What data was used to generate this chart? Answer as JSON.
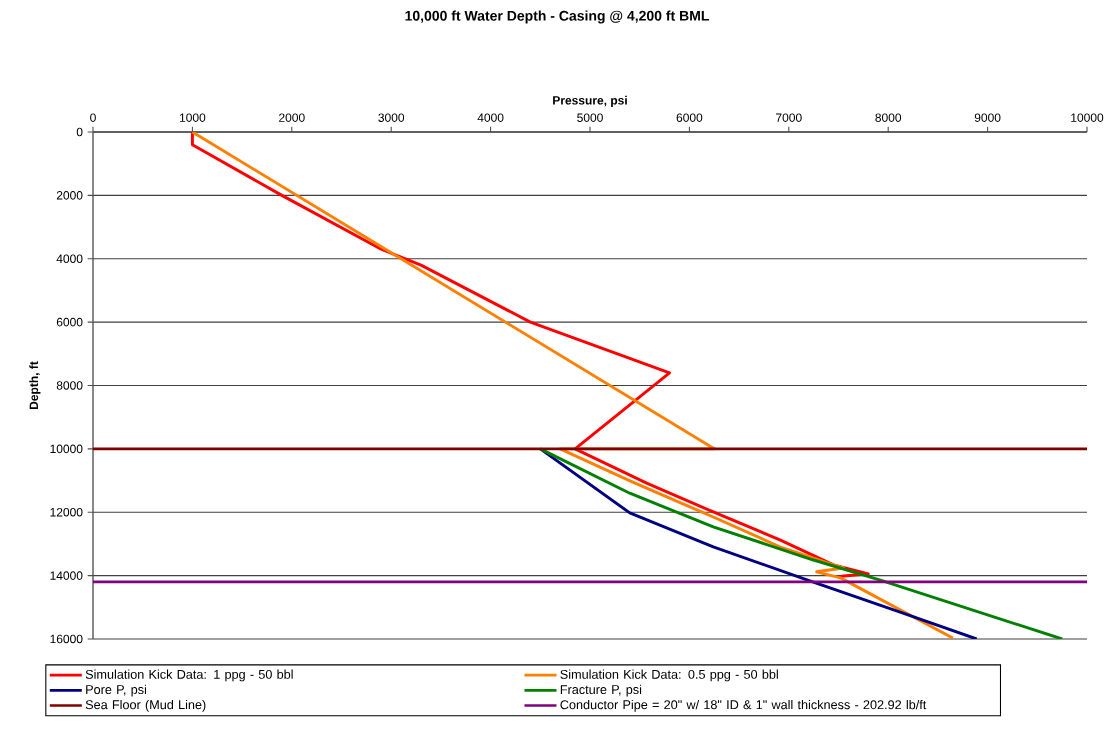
{
  "chart_data": {
    "type": "line",
    "title": "10,000 ft Water Depth - Casing @ 4,200 ft BML",
    "xlabel": "Pressure, psi",
    "ylabel": "Depth, ft",
    "xlim": [
      0,
      10000
    ],
    "xticks": [
      0,
      1000,
      2000,
      3000,
      4000,
      5000,
      6000,
      7000,
      8000,
      9000,
      10000
    ],
    "ylim": [
      16000,
      0
    ],
    "yticks": [
      0,
      2000,
      4000,
      6000,
      8000,
      10000,
      12000,
      14000,
      16000
    ],
    "grid": "y",
    "legend": "bottom",
    "series": [
      {
        "name": "Simulation Kick Data: 1 ppg - 50 bbl",
        "color": "#ff0000",
        "x": [
          1000,
          1000,
          1900,
          2900,
          3300,
          4400,
          5800,
          4850,
          5570,
          6240,
          6910,
          7450,
          7800,
          7550,
          7500
        ],
        "values": [
          0,
          400,
          2000,
          3700,
          4200,
          6000,
          7600,
          10000,
          11080,
          11990,
          12870,
          13660,
          13950,
          14010,
          14050
        ]
      },
      {
        "name": "Simulation Kick Data: 0.5 ppg - 50 bbl",
        "color": "#ff7f00",
        "x": [
          1000,
          6250,
          4700,
          5430,
          6240,
          6910,
          7450,
          7550,
          7280,
          7520,
          8650
        ],
        "values": [
          0,
          10000,
          10000,
          11050,
          12150,
          13090,
          13660,
          13760,
          13880,
          14070,
          15970
        ]
      },
      {
        "name": "Pore P, psi",
        "color": "#000080",
        "x": [
          4500,
          5400,
          6240,
          7240,
          8120,
          8890
        ],
        "values": [
          10000,
          12020,
          13090,
          14200,
          15150,
          16000
        ]
      },
      {
        "name": "Fracture P, psi",
        "color": "#008000",
        "x": [
          4500,
          5400,
          6240,
          7240,
          7920,
          9750
        ],
        "values": [
          10000,
          11400,
          12460,
          13500,
          14140,
          16000
        ]
      },
      {
        "name": "Sea Floor (Mud Line)",
        "color": "#800000",
        "x": [
          0,
          10000
        ],
        "values": [
          10000,
          10000
        ]
      },
      {
        "name": "Conductor Pipe = 20\" w/ 18\" ID & 1\" wall thickness - 202.92 lb/ft",
        "color": "#800080",
        "x": [
          0,
          10000
        ],
        "values": [
          14200,
          14200
        ]
      }
    ]
  }
}
